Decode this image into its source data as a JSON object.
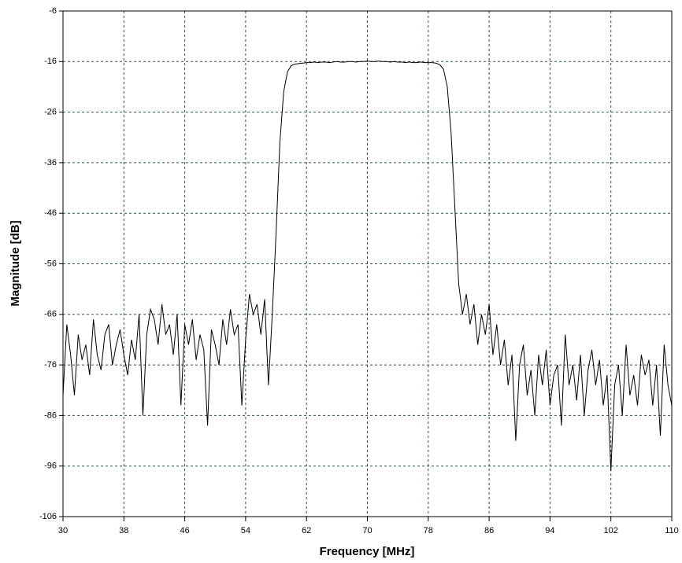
{
  "chart_data": {
    "type": "line",
    "xlabel": "Frequency [MHz]",
    "ylabel": "Magnitude [dB]",
    "xlim": [
      30,
      110
    ],
    "ylim": [
      -106,
      -6
    ],
    "xticks": [
      30,
      38,
      46,
      54,
      62,
      70,
      78,
      86,
      94,
      102,
      110
    ],
    "yticks": [
      -106,
      -96,
      -86,
      -76,
      -66,
      -56,
      -46,
      -36,
      -26,
      -16,
      -6
    ],
    "grid": true,
    "series": [
      {
        "color": "#000000",
        "x": [
          30,
          30.5,
          31,
          31.5,
          32,
          32.5,
          33,
          33.5,
          34,
          34.5,
          35,
          35.5,
          36,
          36.5,
          37,
          37.5,
          38,
          38.5,
          39,
          39.5,
          40,
          40.5,
          41,
          41.5,
          42,
          42.5,
          43,
          43.5,
          44,
          44.5,
          45,
          45.5,
          46,
          46.5,
          47,
          47.5,
          48,
          48.5,
          49,
          49.5,
          50,
          50.5,
          51,
          51.5,
          52,
          52.5,
          53,
          53.5,
          54,
          54.5,
          55,
          55.5,
          56,
          56.5,
          57,
          57.5,
          58,
          58.5,
          59,
          59.5,
          60,
          60.5,
          61,
          61.5,
          62,
          62.5,
          63,
          63.5,
          64,
          64.5,
          65,
          65.5,
          66,
          66.5,
          67,
          67.5,
          68,
          68.5,
          69,
          69.5,
          70,
          70.5,
          71,
          71.5,
          72,
          72.5,
          73,
          73.5,
          74,
          74.5,
          75,
          75.5,
          76,
          76.5,
          77,
          77.5,
          78,
          78.5,
          79,
          79.5,
          80,
          80.5,
          81,
          81.5,
          82,
          82.5,
          83,
          83.5,
          84,
          84.5,
          85,
          85.5,
          86,
          86.5,
          87,
          87.5,
          88,
          88.5,
          89,
          89.5,
          90,
          90.5,
          91,
          91.5,
          92,
          92.5,
          93,
          93.5,
          94,
          94.5,
          95,
          95.5,
          96,
          96.5,
          97,
          97.5,
          98,
          98.5,
          99,
          99.5,
          100,
          100.5,
          101,
          101.5,
          102,
          102.5,
          103,
          103.5,
          104,
          104.5,
          105,
          105.5,
          106,
          106.5,
          107,
          107.5,
          108,
          108.5,
          109,
          109.5,
          110
        ],
        "values": [
          -82,
          -68,
          -74,
          -82,
          -70,
          -75,
          -72,
          -78,
          -67,
          -74,
          -77,
          -70,
          -68,
          -76,
          -72,
          -69,
          -74,
          -78,
          -71,
          -75,
          -66,
          -86,
          -70,
          -65,
          -67,
          -72,
          -64,
          -70,
          -68,
          -74,
          -66,
          -84,
          -68,
          -72,
          -67,
          -75,
          -70,
          -73,
          -88,
          -69,
          -72,
          -76,
          -67,
          -72,
          -65,
          -70,
          -68,
          -84,
          -71,
          -62,
          -66,
          -64,
          -70,
          -63,
          -80,
          -66,
          -50,
          -32,
          -22,
          -18,
          -16.8,
          -16.5,
          -16.4,
          -16.3,
          -16.2,
          -16.2,
          -16.1,
          -16.2,
          -16.1,
          -16.1,
          -16.2,
          -16.1,
          -16,
          -16.1,
          -16.1,
          -16,
          -16,
          -16.1,
          -16,
          -16,
          -15.9,
          -16,
          -16,
          -15.9,
          -16,
          -16,
          -16.1,
          -16,
          -16.1,
          -16.1,
          -16.2,
          -16.1,
          -16.2,
          -16.2,
          -16.1,
          -16.2,
          -16.2,
          -16.2,
          -16.3,
          -16.6,
          -17.5,
          -21,
          -30,
          -45,
          -60,
          -66,
          -62,
          -68,
          -64,
          -72,
          -66,
          -70,
          -64,
          -74,
          -68,
          -76,
          -71,
          -80,
          -74,
          -91,
          -76,
          -72,
          -82,
          -77,
          -86,
          -74,
          -80,
          -73,
          -84,
          -78,
          -76,
          -88,
          -70,
          -80,
          -76,
          -83,
          -74,
          -86,
          -77,
          -73,
          -80,
          -75,
          -84,
          -78,
          -97,
          -80,
          -76,
          -86,
          -72,
          -82,
          -78,
          -84,
          -74,
          -78,
          -75,
          -84,
          -76,
          -90,
          -72,
          -80,
          -84
        ]
      }
    ]
  }
}
